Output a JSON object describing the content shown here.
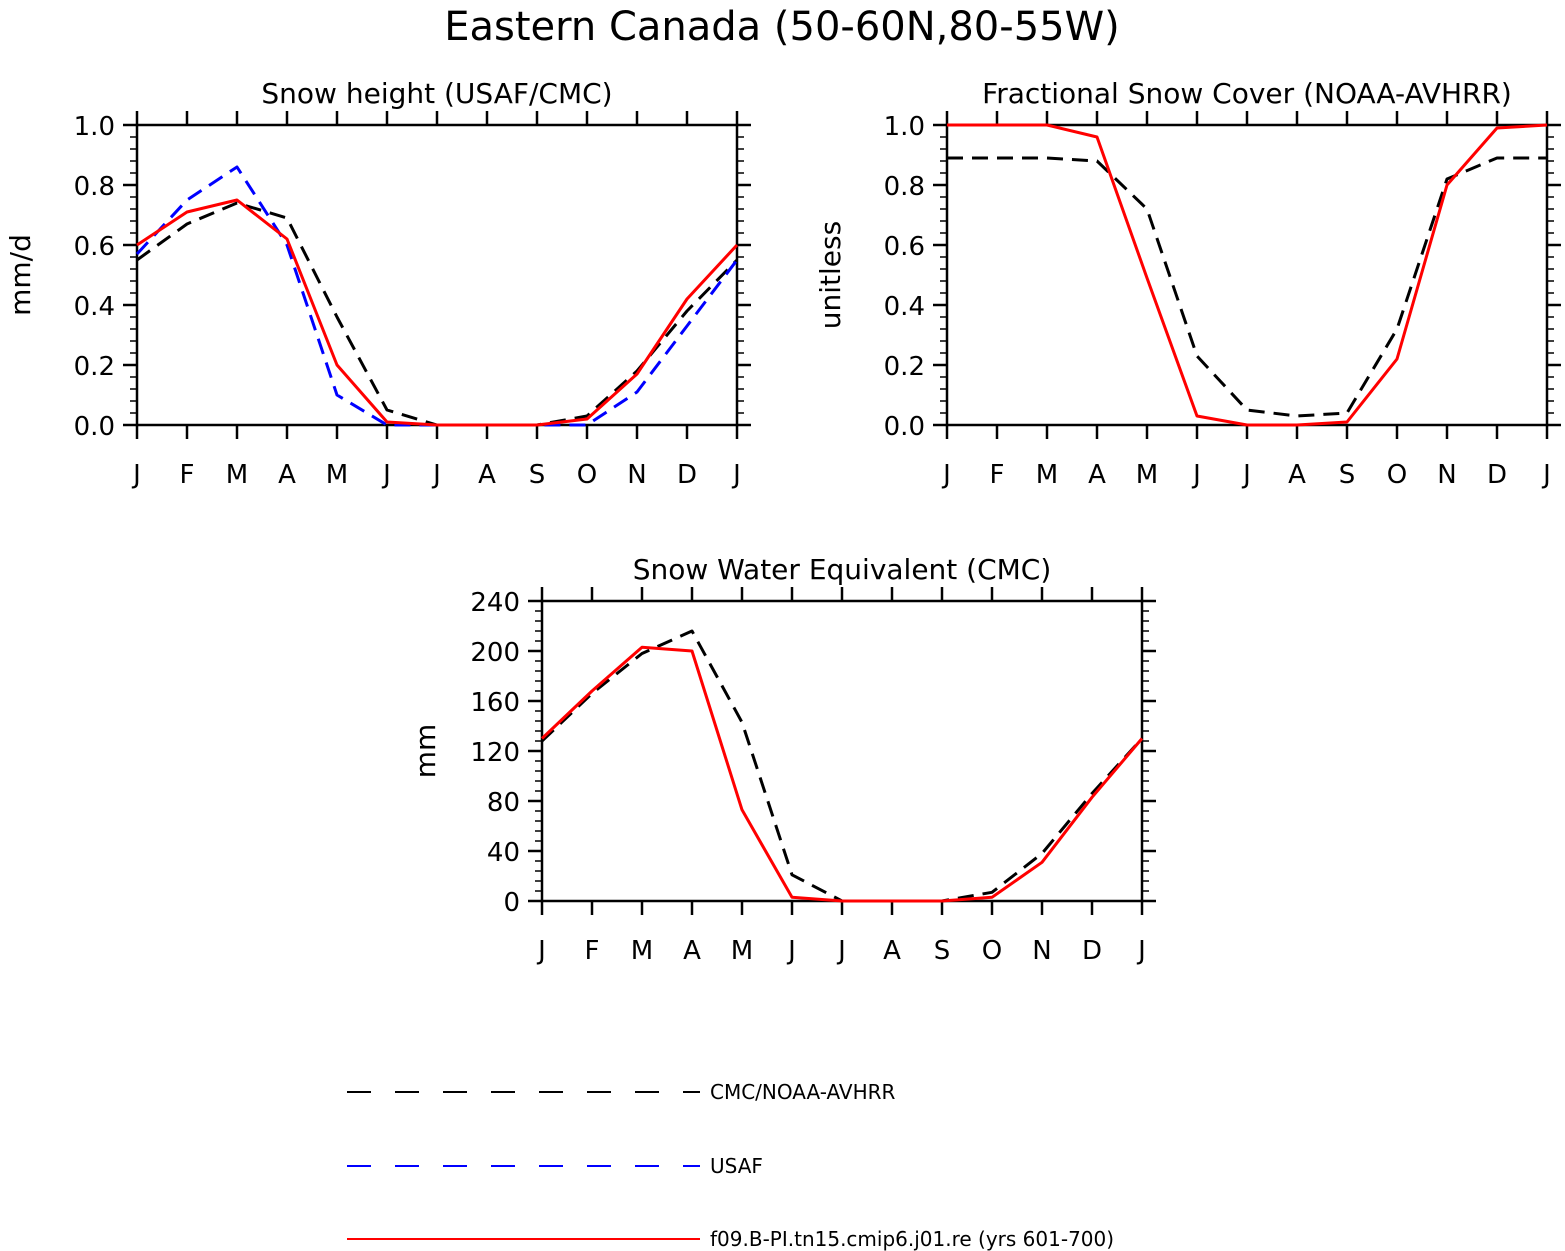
{
  "figure": {
    "title": "Eastern Canada (50-60N,80-55W)"
  },
  "colors": {
    "obs": "#000000",
    "usaf": "#0000ff",
    "model": "#ff0000"
  },
  "chart_data": [
    {
      "type": "line",
      "title": "Snow height (USAF/CMC)",
      "xlabel": "",
      "ylabel": "mm/d",
      "categories": [
        "J",
        "F",
        "M",
        "A",
        "M",
        "J",
        "J",
        "A",
        "S",
        "O",
        "N",
        "D",
        "J"
      ],
      "ylim": [
        0,
        1.0
      ],
      "yticks": [
        "0.0",
        "0.2",
        "0.4",
        "0.6",
        "0.8",
        "1.0"
      ],
      "grid": false,
      "series": [
        {
          "name": "CMC/NOAA-AVHRR",
          "style": "dashed",
          "color": "#000000",
          "values": [
            0.55,
            0.67,
            0.74,
            0.69,
            0.36,
            0.05,
            0.0,
            0.0,
            0.0,
            0.03,
            0.18,
            0.38,
            0.55
          ]
        },
        {
          "name": "USAF",
          "style": "dashed",
          "color": "#0000ff",
          "values": [
            0.57,
            0.75,
            0.86,
            0.6,
            0.1,
            0.0,
            0.0,
            0.0,
            0.0,
            0.0,
            0.11,
            0.33,
            0.55
          ]
        },
        {
          "name": "f09.B-PI.tn15.cmip6.j01.re (yrs 601-700)",
          "style": "solid",
          "color": "#ff0000",
          "values": [
            0.6,
            0.71,
            0.75,
            0.62,
            0.2,
            0.01,
            0.0,
            0.0,
            0.0,
            0.02,
            0.17,
            0.42,
            0.6
          ]
        }
      ]
    },
    {
      "type": "line",
      "title": "Fractional Snow Cover (NOAA-AVHRR)",
      "xlabel": "",
      "ylabel": "unitless",
      "categories": [
        "J",
        "F",
        "M",
        "A",
        "M",
        "J",
        "J",
        "A",
        "S",
        "O",
        "N",
        "D",
        "J"
      ],
      "ylim": [
        0,
        1.0
      ],
      "yticks": [
        "0.0",
        "0.2",
        "0.4",
        "0.6",
        "0.8",
        "1.0"
      ],
      "grid": false,
      "series": [
        {
          "name": "CMC/NOAA-AVHRR",
          "style": "dashed",
          "color": "#000000",
          "values": [
            0.89,
            0.89,
            0.89,
            0.88,
            0.72,
            0.23,
            0.05,
            0.03,
            0.04,
            0.32,
            0.82,
            0.89,
            0.89
          ]
        },
        {
          "name": "f09.B-PI.tn15.cmip6.j01.re (yrs 601-700)",
          "style": "solid",
          "color": "#ff0000",
          "values": [
            1.0,
            1.0,
            1.0,
            0.96,
            0.49,
            0.03,
            0.0,
            0.0,
            0.01,
            0.22,
            0.8,
            0.99,
            1.0
          ]
        }
      ]
    },
    {
      "type": "line",
      "title": "Snow Water Equivalent (CMC)",
      "xlabel": "",
      "ylabel": "mm",
      "categories": [
        "J",
        "F",
        "M",
        "A",
        "M",
        "J",
        "J",
        "A",
        "S",
        "O",
        "N",
        "D",
        "J"
      ],
      "ylim": [
        0,
        240
      ],
      "yticks": [
        "0",
        "40",
        "80",
        "120",
        "160",
        "200",
        "240"
      ],
      "grid": false,
      "series": [
        {
          "name": "CMC/NOAA-AVHRR",
          "style": "dashed",
          "color": "#000000",
          "values": [
            128,
            166,
            198,
            216,
            143,
            21,
            0,
            0,
            0,
            7,
            38,
            86,
            130
          ]
        },
        {
          "name": "f09.B-PI.tn15.cmip6.j01.re (yrs 601-700)",
          "style": "solid",
          "color": "#ff0000",
          "values": [
            130,
            168,
            203,
            200,
            73,
            3,
            0,
            0,
            0,
            3,
            31,
            83,
            130
          ]
        }
      ]
    }
  ],
  "legend": {
    "items": [
      {
        "label": "CMC/NOAA-AVHRR",
        "style": "dashed",
        "color": "#000000"
      },
      {
        "label": "USAF",
        "style": "dashed",
        "color": "#0000ff"
      },
      {
        "label": "f09.B-PI.tn15.cmip6.j01.re (yrs 601-700)",
        "style": "solid",
        "color": "#ff0000"
      }
    ]
  }
}
